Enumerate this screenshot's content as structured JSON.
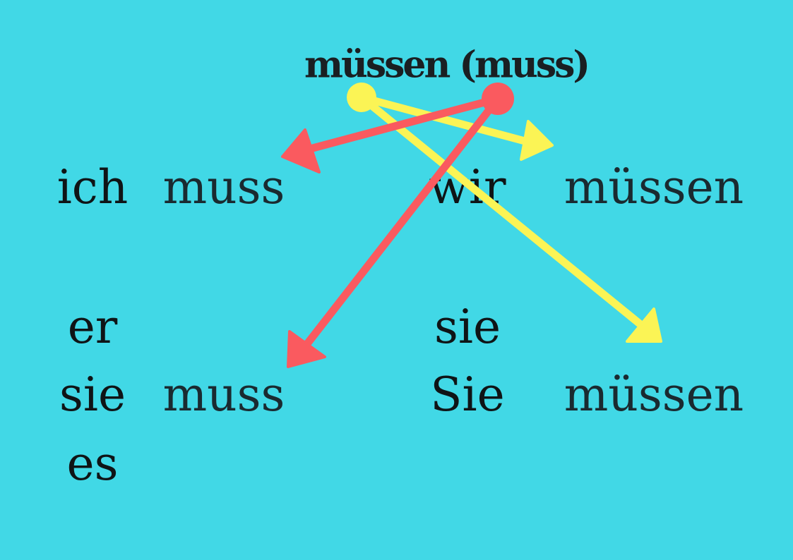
{
  "title": "müssen (muss)",
  "rows": {
    "row1": {
      "pronoun_left": "ich",
      "verb_left": "muss",
      "pronoun_right": "wir",
      "verb_right": "müssen"
    },
    "row2": {
      "pronouns_left": [
        "er",
        "sie",
        "es"
      ],
      "verb_left": "muss",
      "pronouns_right": [
        "sie",
        "Sie"
      ],
      "verb_right": "müssen"
    }
  },
  "colors": {
    "background": "#41d8e6",
    "singular_arrow": "#fa5a5f",
    "plural_arrow": "#fbf455",
    "text": "#111111"
  }
}
